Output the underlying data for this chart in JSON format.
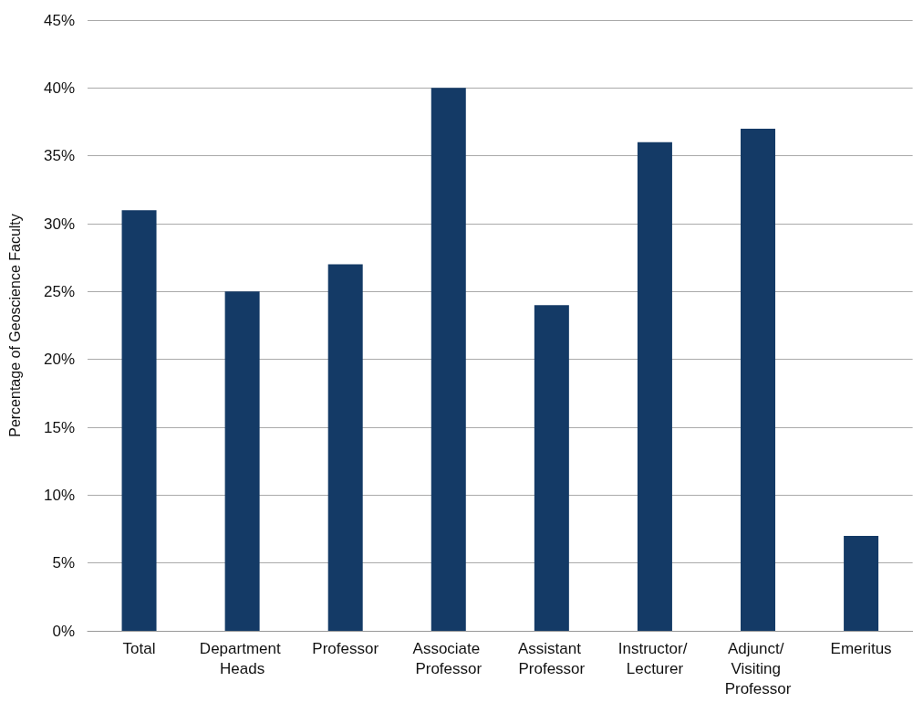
{
  "chart_data": {
    "type": "bar",
    "ylabel": "Percentage of Geoscience Faculty",
    "categories": [
      "Total",
      "Department Heads",
      "Professor",
      "Associate Professor",
      "Assistant Professor",
      "Instructor/ Lecturer",
      "Adjunct/ Visiting Professor",
      "Emeritus"
    ],
    "values": [
      31,
      25,
      27,
      40,
      24,
      36,
      37,
      7
    ],
    "color": "#143a66",
    "ylim": [
      0,
      45
    ],
    "yticks": [
      {
        "value": 0,
        "label": "0%"
      },
      {
        "value": 5,
        "label": "5%"
      },
      {
        "value": 10,
        "label": "10%"
      },
      {
        "value": 15,
        "label": "15%"
      },
      {
        "value": 20,
        "label": "20%"
      },
      {
        "value": 25,
        "label": "25%"
      },
      {
        "value": 30,
        "label": "30%"
      },
      {
        "value": 35,
        "label": "35%"
      },
      {
        "value": 40,
        "label": "40%"
      },
      {
        "value": 45,
        "label": "45%"
      }
    ],
    "grid": "y"
  }
}
